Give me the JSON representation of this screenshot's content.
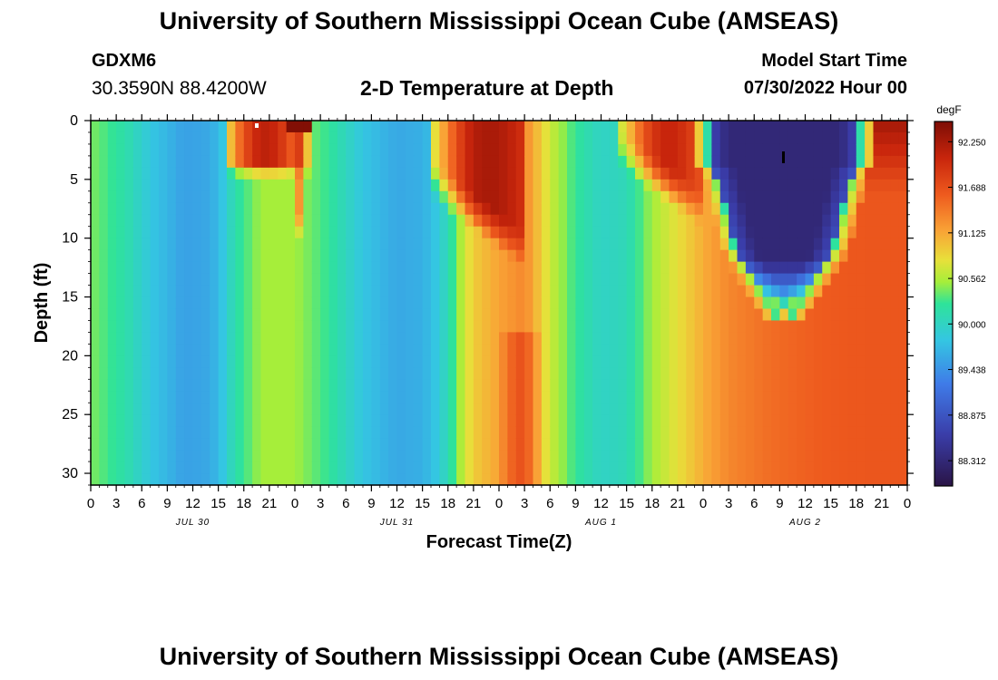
{
  "page": {
    "title_top": "University of Southern Mississippi Ocean Cube (AMSEAS)",
    "title_bottom": "University of Southern Mississippi Ocean Cube (AMSEAS)",
    "station": "GDXM6",
    "coords": "30.3590N  88.4200W",
    "chart_title": "2-D Temperature at Depth",
    "model_start_label": "Model Start Time",
    "model_start_value": "07/30/2022 Hour 00"
  },
  "chart_data": {
    "type": "heatmap",
    "title": "2-D Temperature at Depth",
    "xlabel": "Forecast Time(Z)",
    "ylabel": "Depth (ft)",
    "x_tick_labels": [
      "0",
      "3",
      "6",
      "9",
      "12",
      "15",
      "18",
      "21",
      "0",
      "3",
      "6",
      "9",
      "12",
      "15",
      "18",
      "21",
      "0",
      "3",
      "6",
      "9",
      "12",
      "15",
      "18",
      "21",
      "0",
      "3",
      "6",
      "9",
      "12",
      "15",
      "18",
      "21",
      "0"
    ],
    "day_labels": [
      "JUL 30",
      "JUL 31",
      "AUG 1",
      "AUG 2"
    ],
    "y_ticks": [
      0,
      5,
      10,
      15,
      20,
      25,
      30
    ],
    "ylim": [
      0,
      31
    ],
    "xlim_hours": [
      0,
      96
    ],
    "colorbar": {
      "unit": "degF",
      "tick_labels": [
        "92.250",
        "91.688",
        "91.125",
        "90.562",
        "90.000",
        "89.438",
        "88.875",
        "88.312"
      ],
      "range": [
        88.0,
        92.5
      ]
    }
  }
}
